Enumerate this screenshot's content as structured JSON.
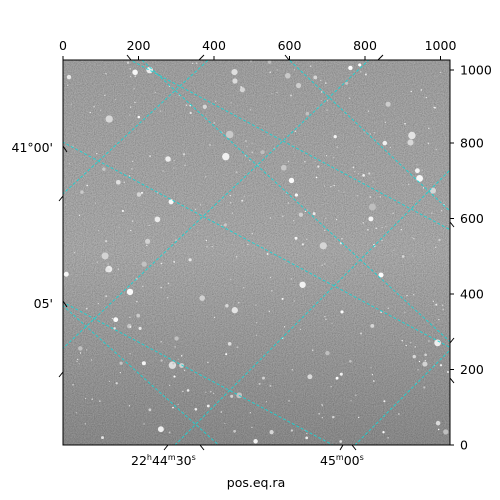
{
  "figure": {
    "xlabel": "pos.eq.ra",
    "top_pixel_ticks": [
      "0",
      "200",
      "400",
      "600",
      "800",
      "1000"
    ],
    "right_pixel_ticks": [
      "0",
      "200",
      "400",
      "600",
      "800",
      "1000"
    ],
    "dec_labels": [
      "41°00'",
      "05'"
    ],
    "ra_labels": [
      {
        "h": "22",
        "m": "44",
        "s": "30"
      },
      {
        "m": "45",
        "s": "00"
      }
    ]
  },
  "image": {
    "description": "grayscale star field with coordinate grid overlay",
    "grid_color": "#17d5d5",
    "background_gray": "#6e6e6e"
  }
}
